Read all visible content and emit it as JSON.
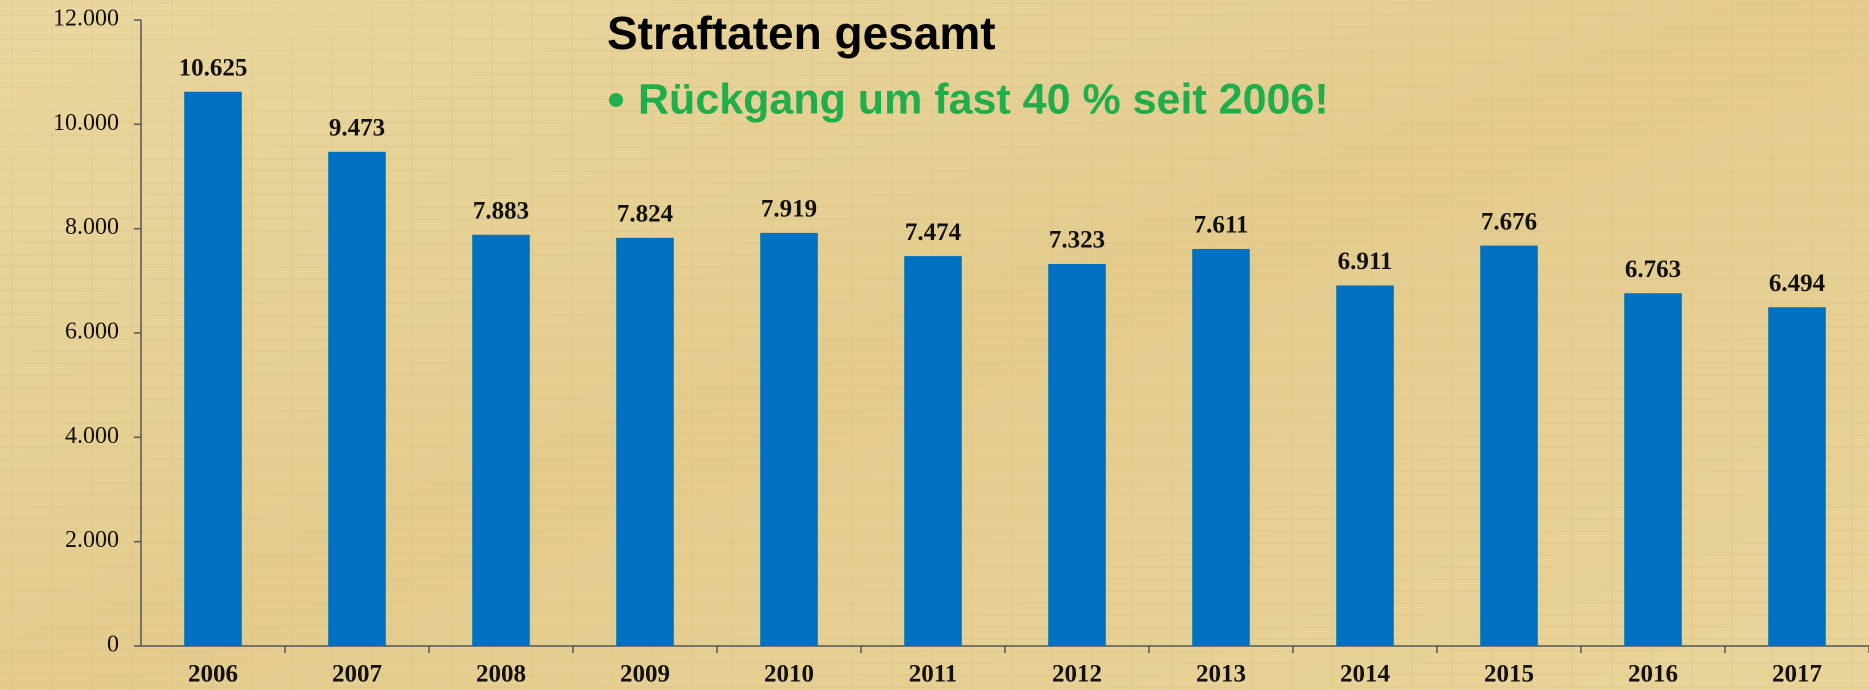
{
  "chart_data": {
    "type": "bar",
    "title": "Straftaten gesamt",
    "subtitle": "Rückgang um fast 40 % seit 2006!",
    "categories": [
      "2006",
      "2007",
      "2008",
      "2009",
      "2010",
      "2011",
      "2012",
      "2013",
      "2014",
      "2015",
      "2016",
      "2017"
    ],
    "values": [
      10625,
      9473,
      7883,
      7824,
      7919,
      7474,
      7323,
      7611,
      6911,
      7676,
      6763,
      6494
    ],
    "value_labels": [
      "10.625",
      "9.473",
      "7.883",
      "7.824",
      "7.919",
      "7.474",
      "7.323",
      "7.611",
      "6.911",
      "7.676",
      "6.763",
      "6.494"
    ],
    "color": "#0070c0",
    "ylim": [
      0,
      12000
    ],
    "yticks": [
      0,
      {
        "value": 2000,
        "label": "2.000"
      },
      {
        "value": 4000,
        "label": "4.000"
      },
      {
        "value": 6000,
        "label": "6.000"
      },
      {
        "value": 8000,
        "label": "8.000"
      },
      {
        "value": 10000,
        "label": "10.000"
      },
      {
        "value": 12000,
        "label": "12.000"
      }
    ],
    "grid": false
  }
}
